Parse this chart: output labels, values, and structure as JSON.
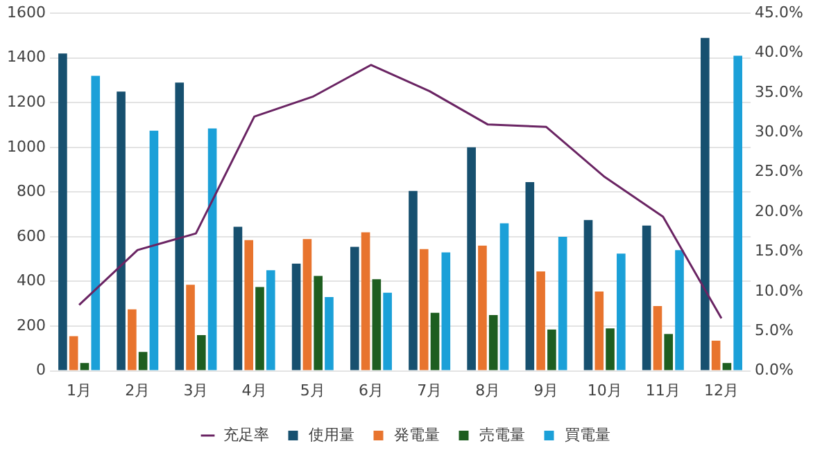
{
  "chart_data": {
    "type": "bar",
    "categories": [
      "1月",
      "2月",
      "3月",
      "4月",
      "5月",
      "6月",
      "7月",
      "8月",
      "9月",
      "10月",
      "11月",
      "12月"
    ],
    "series": [
      {
        "name": "使用量",
        "color": "#17506f",
        "values": [
          1420,
          1250,
          1290,
          645,
          480,
          555,
          805,
          1000,
          845,
          675,
          650,
          1490
        ]
      },
      {
        "name": "発電量",
        "color": "#e8742e",
        "values": [
          155,
          275,
          385,
          585,
          590,
          620,
          545,
          560,
          445,
          355,
          290,
          135
        ]
      },
      {
        "name": "売電量",
        "color": "#1e5e20",
        "values": [
          35,
          85,
          160,
          375,
          425,
          410,
          260,
          250,
          185,
          190,
          165,
          35
        ]
      },
      {
        "name": "買電量",
        "color": "#1ba0d8",
        "values": [
          1320,
          1075,
          1085,
          450,
          330,
          350,
          530,
          660,
          600,
          525,
          540,
          1410
        ]
      },
      {
        "name": "充足率",
        "type": "line",
        "axis": "y2",
        "color": "#6a2463",
        "values": [
          8.3,
          15.2,
          17.3,
          32,
          34.5,
          38.5,
          35.2,
          31,
          30.7,
          24.4,
          19.4,
          6.6
        ]
      }
    ],
    "ylim": [
      0,
      1600
    ],
    "yticks": [
      0,
      200,
      400,
      600,
      800,
      1000,
      1200,
      1400,
      1600
    ],
    "y2lim": [
      0,
      45
    ],
    "y2ticks": [
      {
        "value": 0,
        "label": "0.0%"
      },
      {
        "value": 5,
        "label": "5.0%"
      },
      {
        "value": 10,
        "label": "10.0%"
      },
      {
        "value": 15,
        "label": "15.0%"
      },
      {
        "value": 20,
        "label": "20.0%"
      },
      {
        "value": 25,
        "label": "25.0%"
      },
      {
        "value": 30,
        "label": "30.0%"
      },
      {
        "value": 35,
        "label": "35.0%"
      },
      {
        "value": 40,
        "label": "40.0%"
      },
      {
        "value": 45,
        "label": "45.0%"
      }
    ],
    "grid": "y",
    "legend": "bottom",
    "marker": "none"
  }
}
